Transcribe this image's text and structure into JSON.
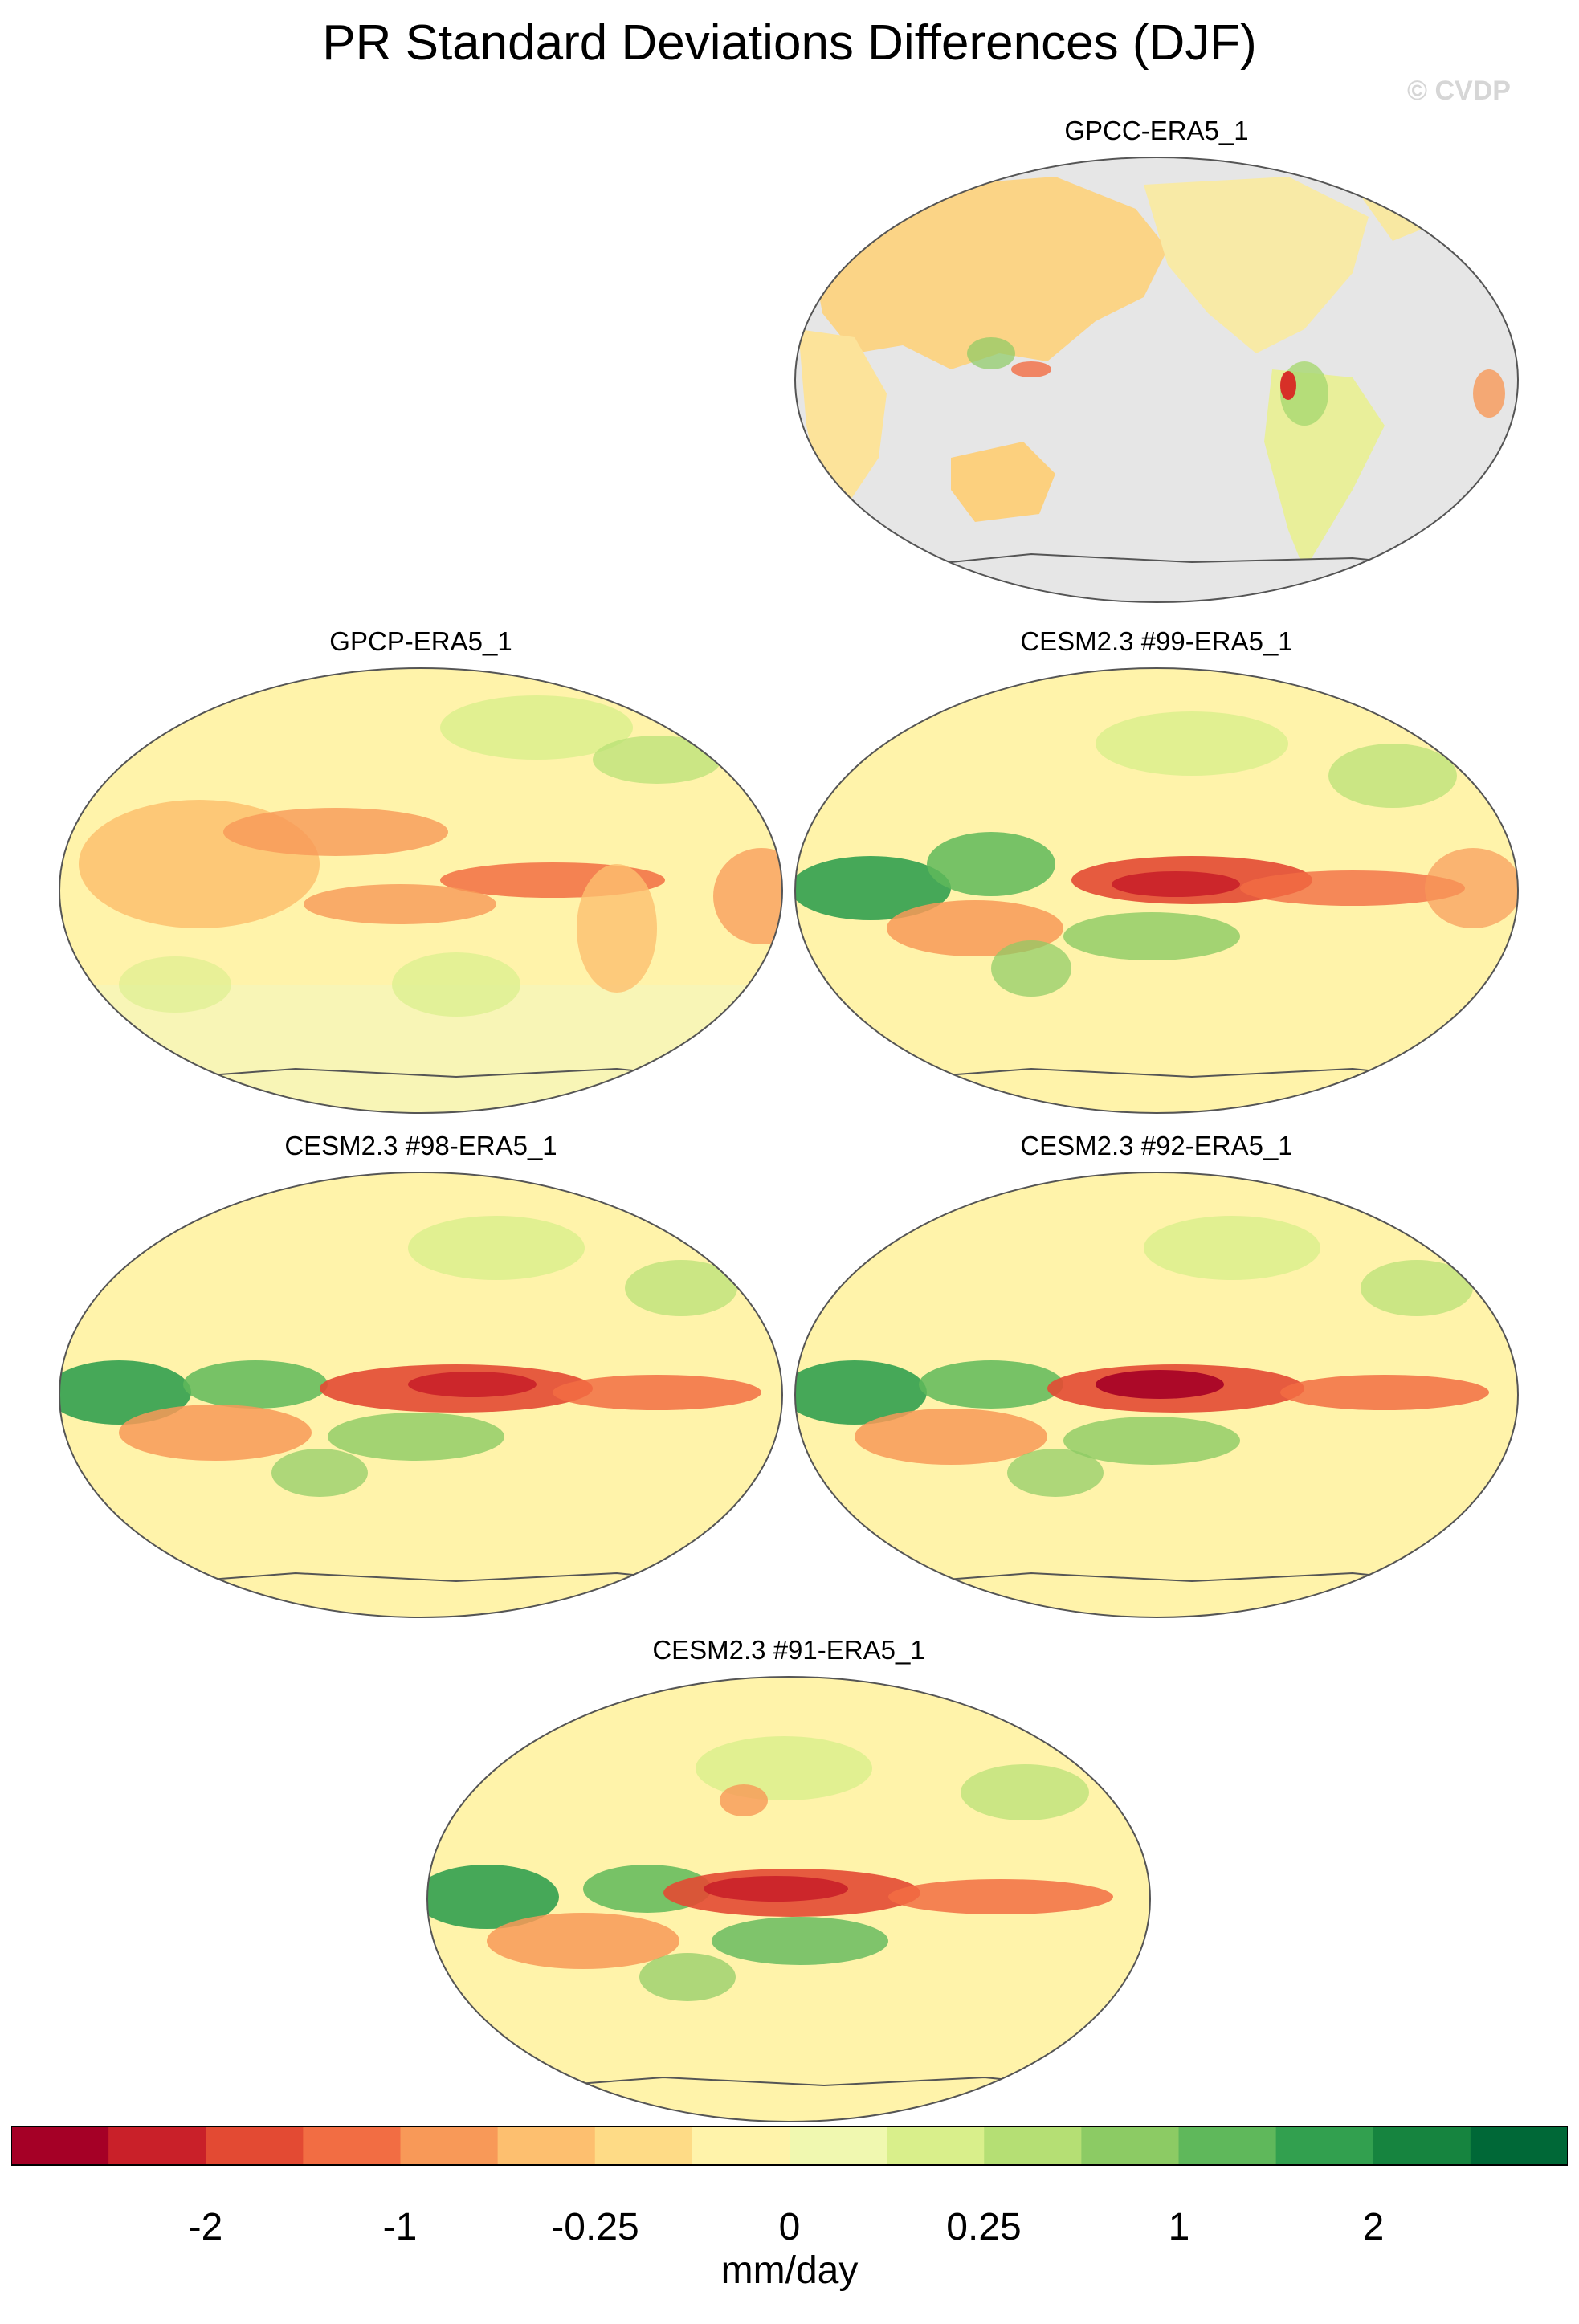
{
  "title": "PR Standard Deviations Differences (DJF)",
  "watermark": "© CVDP",
  "panels": [
    {
      "label": "GPCC-ERA5_1",
      "type": "land_only"
    },
    {
      "label": "GPCP-ERA5_1",
      "type": "obs"
    },
    {
      "label": "CESM2.3 #99-ERA5_1",
      "type": "model"
    },
    {
      "label": "CESM2.3 #98-ERA5_1",
      "type": "model"
    },
    {
      "label": "CESM2.3 #92-ERA5_1",
      "type": "model"
    },
    {
      "label": "CESM2.3 #91-ERA5_1",
      "type": "model"
    }
  ],
  "colorbar": {
    "colors": [
      "#a50026",
      "#c92029",
      "#e34a33",
      "#f26d43",
      "#f89958",
      "#fdbf6f",
      "#fedb86",
      "#fff3aa",
      "#f0f8b0",
      "#d9ef8b",
      "#b5df74",
      "#8ccb64",
      "#5fb85b",
      "#32a04f",
      "#16843f",
      "#006837"
    ],
    "tick_labels": [
      "-2",
      "-1",
      "-0.25",
      "0",
      "0.25",
      "1",
      "2"
    ],
    "units": "mm/day"
  },
  "land_mask_color": "#e6e6e6",
  "background_color": "#fff3aa"
}
